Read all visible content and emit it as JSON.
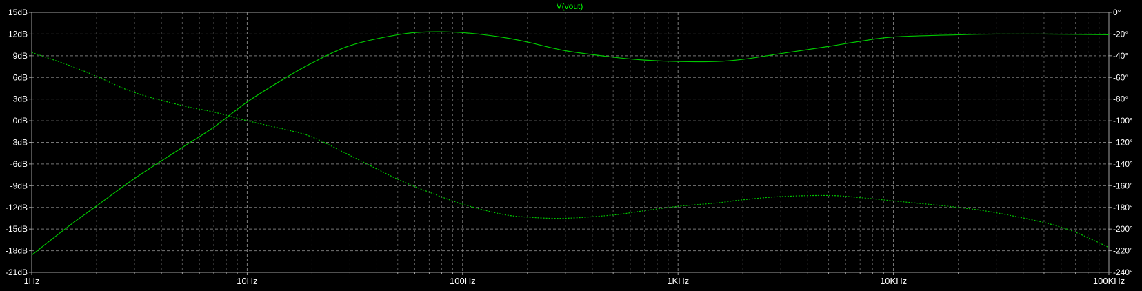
{
  "chart_data": {
    "type": "line",
    "title": "V(vout)",
    "x_scale": "log",
    "x_range_hz": [
      1,
      100000
    ],
    "x_tick_labels": [
      "1Hz",
      "10Hz",
      "100Hz",
      "1KHz",
      "10KHz",
      "100KHz"
    ],
    "y_left_range_db": [
      -21,
      15
    ],
    "y_left_tick_labels": [
      "15dB",
      "12dB",
      "9dB",
      "6dB",
      "3dB",
      "0dB",
      "-3dB",
      "-6dB",
      "-9dB",
      "-12dB",
      "-15dB",
      "-18dB",
      "-21dB"
    ],
    "y_right_range_deg": [
      -240,
      0
    ],
    "y_right_tick_labels": [
      "0°",
      "-20°",
      "-40°",
      "-60°",
      "-80°",
      "-100°",
      "-120°",
      "-140°",
      "-160°",
      "-180°",
      "-200°",
      "-220°",
      "-240°"
    ],
    "grid": true,
    "series": [
      {
        "name": "V(vout)",
        "kind": "magnitude",
        "axis": "left",
        "line_style": "solid",
        "x": [
          1,
          1.5,
          2,
          3,
          5,
          7,
          10,
          15,
          20,
          30,
          50,
          70,
          100,
          150,
          200,
          300,
          500,
          700,
          1000,
          1500,
          2000,
          3000,
          5000,
          7000,
          10000,
          20000,
          30000,
          50000,
          100000
        ],
        "y": [
          -18.6,
          -14.5,
          -11.8,
          -8.0,
          -3.7,
          -0.9,
          2.6,
          5.9,
          8.0,
          10.4,
          11.9,
          12.3,
          12.2,
          11.6,
          10.9,
          9.7,
          8.8,
          8.4,
          8.2,
          8.2,
          8.5,
          9.3,
          10.3,
          11.0,
          11.6,
          11.9,
          12.0,
          12.0,
          11.9
        ]
      },
      {
        "name": "",
        "kind": "phase",
        "axis": "right",
        "line_style": "dotted",
        "x": [
          1,
          1.5,
          2,
          3,
          5,
          7,
          10,
          15,
          20,
          30,
          50,
          70,
          100,
          150,
          200,
          300,
          500,
          700,
          1000,
          1500,
          2000,
          3000,
          5000,
          7000,
          10000,
          20000,
          30000,
          50000,
          70000,
          100000
        ],
        "y": [
          -37.0,
          -49.0,
          -59.0,
          -74.0,
          -86.0,
          -92.0,
          -100.0,
          -108.0,
          -115.0,
          -132.0,
          -154.0,
          -166.0,
          -177.0,
          -186.0,
          -189.0,
          -190.0,
          -187.0,
          -183.0,
          -179.0,
          -176.0,
          -173.0,
          -170.0,
          -169.0,
          -171.0,
          -174.0,
          -180.0,
          -185.0,
          -194.0,
          -203.0,
          -217.0
        ]
      }
    ],
    "colors": {
      "background": "#000000",
      "trace": "#00c800",
      "title": "#00ff00",
      "grid": "#8c8c8c",
      "axis": "#a0a0a0",
      "tick_label": "#ffffff"
    }
  }
}
